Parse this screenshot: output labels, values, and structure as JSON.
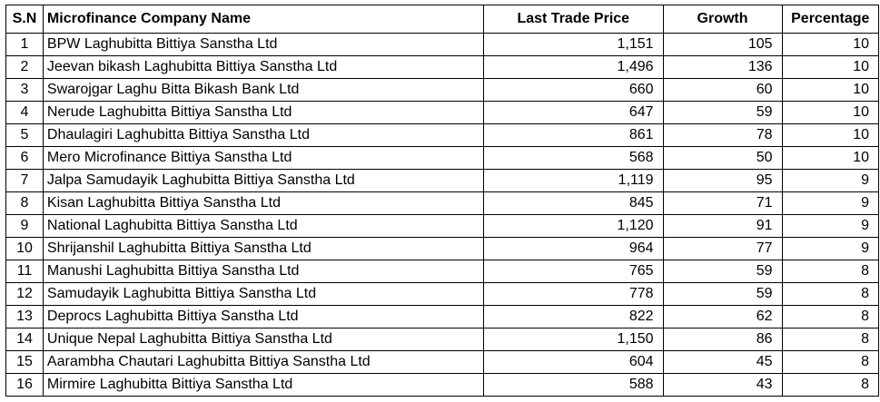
{
  "headers": {
    "sn": "S.N",
    "name": "Microfinance Company Name",
    "ltp": "Last Trade Price",
    "growth": "Growth",
    "pct": "Percentage"
  },
  "rows": [
    {
      "sn": "1",
      "name": "BPW Laghubitta Bittiya Sanstha Ltd",
      "ltp": "1,151",
      "growth": "105",
      "pct": "10"
    },
    {
      "sn": "2",
      "name": "Jeevan bikash Laghubitta Bittiya Sanstha Ltd",
      "ltp": "1,496",
      "growth": "136",
      "pct": "10"
    },
    {
      "sn": "3",
      "name": "Swarojgar Laghu Bitta Bikash Bank Ltd",
      "ltp": "660",
      "growth": "60",
      "pct": "10"
    },
    {
      "sn": "4",
      "name": "Nerude Laghubitta Bittiya Sanstha Ltd",
      "ltp": "647",
      "growth": "59",
      "pct": "10"
    },
    {
      "sn": "5",
      "name": "Dhaulagiri Laghubitta Bittiya Sanstha Ltd",
      "ltp": "861",
      "growth": "78",
      "pct": "10"
    },
    {
      "sn": "6",
      "name": "Mero Microfinance Bittiya Sanstha Ltd",
      "ltp": "568",
      "growth": "50",
      "pct": "10"
    },
    {
      "sn": "7",
      "name": "Jalpa Samudayik Laghubitta Bittiya Sanstha Ltd",
      "ltp": "1,119",
      "growth": "95",
      "pct": "9"
    },
    {
      "sn": "8",
      "name": "Kisan Laghubitta Bittiya Sanstha Ltd",
      "ltp": "845",
      "growth": "71",
      "pct": "9"
    },
    {
      "sn": "9",
      "name": "National Laghubitta Bittiya Sanstha Ltd",
      "ltp": "1,120",
      "growth": "91",
      "pct": "9"
    },
    {
      "sn": "10",
      "name": "Shrijanshil Laghubitta Bittiya Sanstha Ltd",
      "ltp": "964",
      "growth": "77",
      "pct": "9"
    },
    {
      "sn": "11",
      "name": "Manushi Laghubitta Bittiya Sanstha Ltd",
      "ltp": "765",
      "growth": "59",
      "pct": "8"
    },
    {
      "sn": "12",
      "name": "Samudayik Laghubitta Bittiya Sanstha Ltd",
      "ltp": "778",
      "growth": "59",
      "pct": "8"
    },
    {
      "sn": "13",
      "name": "Deprocs Laghubitta Bittiya Sanstha Ltd",
      "ltp": "822",
      "growth": "62",
      "pct": "8"
    },
    {
      "sn": "14",
      "name": "Unique Nepal Laghubitta Bittiya Sanstha Ltd",
      "ltp": "1,150",
      "growth": "86",
      "pct": "8"
    },
    {
      "sn": "15",
      "name": "Aarambha Chautari Laghubitta Bittiya Sanstha Ltd",
      "ltp": "604",
      "growth": "45",
      "pct": "8"
    },
    {
      "sn": "16",
      "name": "Mirmire Laghubitta Bittiya Sanstha Ltd",
      "ltp": "588",
      "growth": "43",
      "pct": "8"
    }
  ]
}
